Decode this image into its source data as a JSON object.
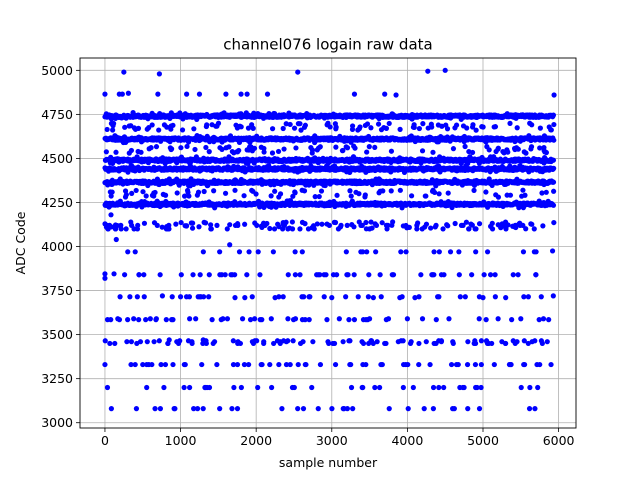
{
  "chart_data": {
    "type": "scatter",
    "title": "channel076 logain raw data",
    "xlabel": "sample number",
    "ylabel": "ADC Code",
    "xlim": [
      -330,
      6230
    ],
    "ylim": [
      2970,
      5070
    ],
    "xticks": [
      0,
      1000,
      2000,
      3000,
      4000,
      5000,
      6000
    ],
    "yticks": [
      3000,
      3250,
      3500,
      3750,
      4000,
      4250,
      4500,
      4750,
      5000
    ],
    "grid": true,
    "marker_color": "#0000ff",
    "sample_count": 5940,
    "dense_bands": [
      {
        "value": 4740,
        "coverage": "continuous"
      },
      {
        "value": 4610,
        "coverage": "continuous"
      },
      {
        "value": 4490,
        "coverage": "continuous"
      },
      {
        "value": 4440,
        "coverage": "continuous"
      },
      {
        "value": 4365,
        "coverage": "continuous"
      },
      {
        "value": 4240,
        "coverage": "continuous"
      }
    ],
    "level_values": [
      3080,
      3200,
      3330,
      3450,
      3465,
      3585,
      3715,
      3840,
      3970,
      4100,
      4120,
      4240,
      4365,
      4490,
      4610,
      4740,
      4860,
      4985,
      5000
    ],
    "points": [
      [
        0,
        4865
      ],
      [
        0,
        3845
      ],
      [
        0,
        3820
      ],
      [
        0,
        3330
      ],
      [
        20,
        4110
      ],
      [
        40,
        4100
      ],
      [
        60,
        4230
      ],
      [
        80,
        4180
      ],
      [
        120,
        3845
      ],
      [
        130,
        3450
      ],
      [
        150,
        4040
      ],
      [
        170,
        3590
      ],
      [
        190,
        4865
      ],
      [
        200,
        3715
      ],
      [
        230,
        4865
      ],
      [
        250,
        4990
      ],
      [
        260,
        3840
      ],
      [
        290,
        3460
      ],
      [
        300,
        3585
      ],
      [
        310,
        4870
      ],
      [
        330,
        3715
      ],
      [
        350,
        3460
      ],
      [
        380,
        3590
      ],
      [
        400,
        3330
      ],
      [
        430,
        4100
      ],
      [
        450,
        3840
      ],
      [
        470,
        3460
      ],
      [
        500,
        3330
      ],
      [
        520,
        3715
      ],
      [
        560,
        3460
      ],
      [
        580,
        3330
      ],
      [
        600,
        3590
      ],
      [
        620,
        3330
      ],
      [
        650,
        3460
      ],
      [
        680,
        3590
      ],
      [
        700,
        4865
      ],
      [
        720,
        4980
      ],
      [
        730,
        3840
      ],
      [
        760,
        3720
      ],
      [
        780,
        3200
      ],
      [
        800,
        3330
      ],
      [
        850,
        3470
      ],
      [
        900,
        3330
      ],
      [
        950,
        3460
      ],
      [
        1000,
        3715
      ],
      [
        1050,
        3330
      ],
      [
        1080,
        4865
      ],
      [
        1120,
        3590
      ],
      [
        1150,
        3460
      ],
      [
        1200,
        3590
      ],
      [
        1250,
        4865
      ],
      [
        1280,
        3330
      ],
      [
        1300,
        3470
      ],
      [
        1350,
        3200
      ],
      [
        1380,
        3840
      ],
      [
        1400,
        4100
      ],
      [
        1450,
        3460
      ],
      [
        1480,
        3330
      ],
      [
        1520,
        3840
      ],
      [
        1560,
        3590
      ],
      [
        1600,
        4865
      ],
      [
        1620,
        3590
      ],
      [
        1650,
        4010
      ],
      [
        1680,
        3080
      ],
      [
        1700,
        3330
      ],
      [
        1720,
        3710
      ],
      [
        1760,
        3460
      ],
      [
        1800,
        4865
      ],
      [
        1820,
        3590
      ],
      [
        1850,
        3710
      ],
      [
        1880,
        4865
      ],
      [
        1900,
        3330
      ],
      [
        1950,
        3460
      ],
      [
        1980,
        3590
      ],
      [
        2020,
        3200
      ],
      [
        2050,
        3840
      ],
      [
        2100,
        3460
      ],
      [
        2150,
        4865
      ],
      [
        2180,
        3330
      ],
      [
        2200,
        3590
      ],
      [
        2250,
        3710
      ],
      [
        2300,
        3330
      ],
      [
        2320,
        3460
      ],
      [
        2350,
        4100
      ],
      [
        2400,
        3460
      ],
      [
        2420,
        3590
      ],
      [
        2450,
        3330
      ],
      [
        2480,
        3200
      ],
      [
        2520,
        3590
      ],
      [
        2550,
        4990
      ],
      [
        2580,
        3840
      ],
      [
        2620,
        3460
      ],
      [
        2650,
        3330
      ],
      [
        2700,
        3715
      ],
      [
        2750,
        3460
      ],
      [
        2800,
        3840
      ],
      [
        2850,
        3330
      ],
      [
        2900,
        3715
      ],
      [
        2950,
        3460
      ],
      [
        3000,
        3710
      ],
      [
        3050,
        3330
      ],
      [
        3100,
        3590
      ],
      [
        3150,
        3460
      ],
      [
        3200,
        3840
      ],
      [
        3250,
        3330
      ],
      [
        3300,
        4865
      ],
      [
        3350,
        3715
      ],
      [
        3400,
        3460
      ],
      [
        3450,
        3330
      ],
      [
        3500,
        3590
      ],
      [
        3550,
        3710
      ],
      [
        3600,
        3460
      ],
      [
        3650,
        3330
      ],
      [
        3700,
        4865
      ],
      [
        3750,
        3590
      ],
      [
        3800,
        3840
      ],
      [
        3850,
        4860
      ],
      [
        3880,
        3460
      ],
      [
        3900,
        3710
      ],
      [
        3950,
        3330
      ],
      [
        4000,
        3590
      ],
      [
        4050,
        3460
      ],
      [
        4100,
        3710
      ],
      [
        4150,
        3330
      ],
      [
        4200,
        3590
      ],
      [
        4250,
        3460
      ],
      [
        4270,
        4995
      ],
      [
        4300,
        3330
      ],
      [
        4350,
        3840
      ],
      [
        4400,
        3715
      ],
      [
        4450,
        3460
      ],
      [
        4480,
        3200
      ],
      [
        4500,
        5000
      ],
      [
        4550,
        3590
      ],
      [
        4600,
        3460
      ],
      [
        4650,
        3330
      ],
      [
        4700,
        3715
      ],
      [
        4750,
        3200
      ],
      [
        4800,
        3460
      ],
      [
        4850,
        3840
      ],
      [
        4900,
        3330
      ],
      [
        4950,
        3590
      ],
      [
        5000,
        3710
      ],
      [
        5050,
        3460
      ],
      [
        5100,
        3840
      ],
      [
        5150,
        3330
      ],
      [
        5200,
        3590
      ],
      [
        5250,
        3460
      ],
      [
        5300,
        3710
      ],
      [
        5350,
        3330
      ],
      [
        5400,
        3840
      ],
      [
        5450,
        3460
      ],
      [
        5500,
        3590
      ],
      [
        5550,
        3330
      ],
      [
        5600,
        3715
      ],
      [
        5650,
        3460
      ],
      [
        5700,
        3840
      ],
      [
        5750,
        3330
      ],
      [
        5800,
        3590
      ],
      [
        5850,
        3460
      ],
      [
        5900,
        3330
      ],
      [
        5920,
        3975
      ],
      [
        5930,
        3720
      ],
      [
        5940,
        4860
      ]
    ]
  }
}
